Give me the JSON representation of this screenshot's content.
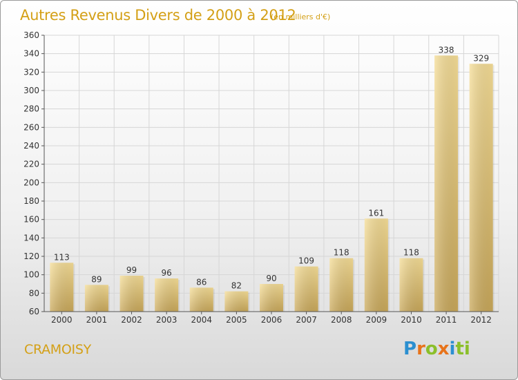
{
  "header": {
    "title": "Autres Revenus Divers de 2000 à 2012",
    "unit": "(en milliers d'€)"
  },
  "footer": {
    "town": "CRAMOISY",
    "logo_letters": [
      "P",
      "r",
      "o",
      "x",
      "i",
      "ti"
    ]
  },
  "colors": {
    "accent": "#d4a017",
    "bar_light": "#f5dd96",
    "bar_dark": "#c9a85a"
  },
  "chart_data": {
    "type": "bar",
    "categories": [
      "2000",
      "2001",
      "2002",
      "2003",
      "2004",
      "2005",
      "2006",
      "2007",
      "2008",
      "2009",
      "2010",
      "2011",
      "2012"
    ],
    "values": [
      113,
      89,
      99,
      96,
      86,
      82,
      90,
      109,
      118,
      161,
      118,
      338,
      329
    ],
    "value_labels": [
      "113",
      "89",
      "99",
      "96",
      "86",
      "82",
      "90",
      "109",
      "118",
      "161",
      "118",
      "338",
      "329"
    ],
    "yticks": [
      60,
      80,
      100,
      120,
      140,
      160,
      180,
      200,
      220,
      240,
      260,
      280,
      300,
      320,
      340,
      360
    ],
    "ytick_labels": [
      "60",
      "80",
      "100",
      "120",
      "140",
      "160",
      "180",
      "200",
      "220",
      "240",
      "260",
      "280",
      "300",
      "320",
      "340",
      "360"
    ],
    "ylim": [
      60,
      360
    ],
    "grid": true,
    "legend": "none"
  }
}
